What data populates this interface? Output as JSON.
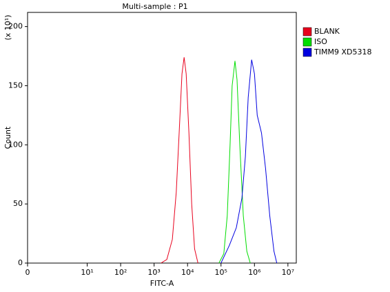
{
  "chart_data": {
    "type": "line",
    "title": "Multi-sample : P1",
    "x_label": "FITC-A",
    "y_label": "Count",
    "y_multiplier": "(x 10¹)",
    "x_scale": "biexponential",
    "xlim": [
      0,
      17800000
    ],
    "xticks": [
      0,
      {
        "value": 10,
        "label": "10¹"
      },
      {
        "value": 100,
        "label": "10²"
      },
      {
        "value": 1000,
        "label": "10³"
      },
      {
        "value": 10000,
        "label": "10⁴"
      },
      {
        "value": 100000,
        "label": "10⁵"
      },
      {
        "value": 1000000,
        "label": "10⁶"
      },
      {
        "value": 10000000,
        "label": "10⁷"
      }
    ],
    "ylim": [
      0,
      212
    ],
    "yticks": [
      0,
      50,
      100,
      150,
      200
    ],
    "legend": "right",
    "series": [
      {
        "name": "BLANK",
        "color": "#e8001c",
        "x": [
          1600,
          2400,
          3500,
          4600,
          5600,
          6800,
          7900,
          9100,
          11000,
          13300,
          16200,
          20500
        ],
        "values": [
          0,
          3,
          20,
          60,
          110,
          160,
          174,
          160,
          110,
          50,
          12,
          0
        ]
      },
      {
        "name": "ISO",
        "color": "#00dd00",
        "x": [
          86600,
          121000,
          154000,
          187000,
          215000,
          261000,
          301000,
          365000,
          464000,
          590000,
          750000
        ],
        "values": [
          0,
          8,
          40,
          100,
          150,
          171,
          155,
          100,
          40,
          10,
          0
        ]
      },
      {
        "name": "TIMM9 XD5318",
        "color": "#0000e0",
        "x": [
          100000,
          178000,
          287000,
          422000,
          536000,
          649000,
          825000,
          1000000,
          1210000,
          1620000,
          2150000,
          2870000,
          3830000,
          4640000
        ],
        "values": [
          0,
          15,
          30,
          55,
          90,
          140,
          172,
          160,
          125,
          110,
          80,
          40,
          10,
          0
        ]
      }
    ]
  }
}
